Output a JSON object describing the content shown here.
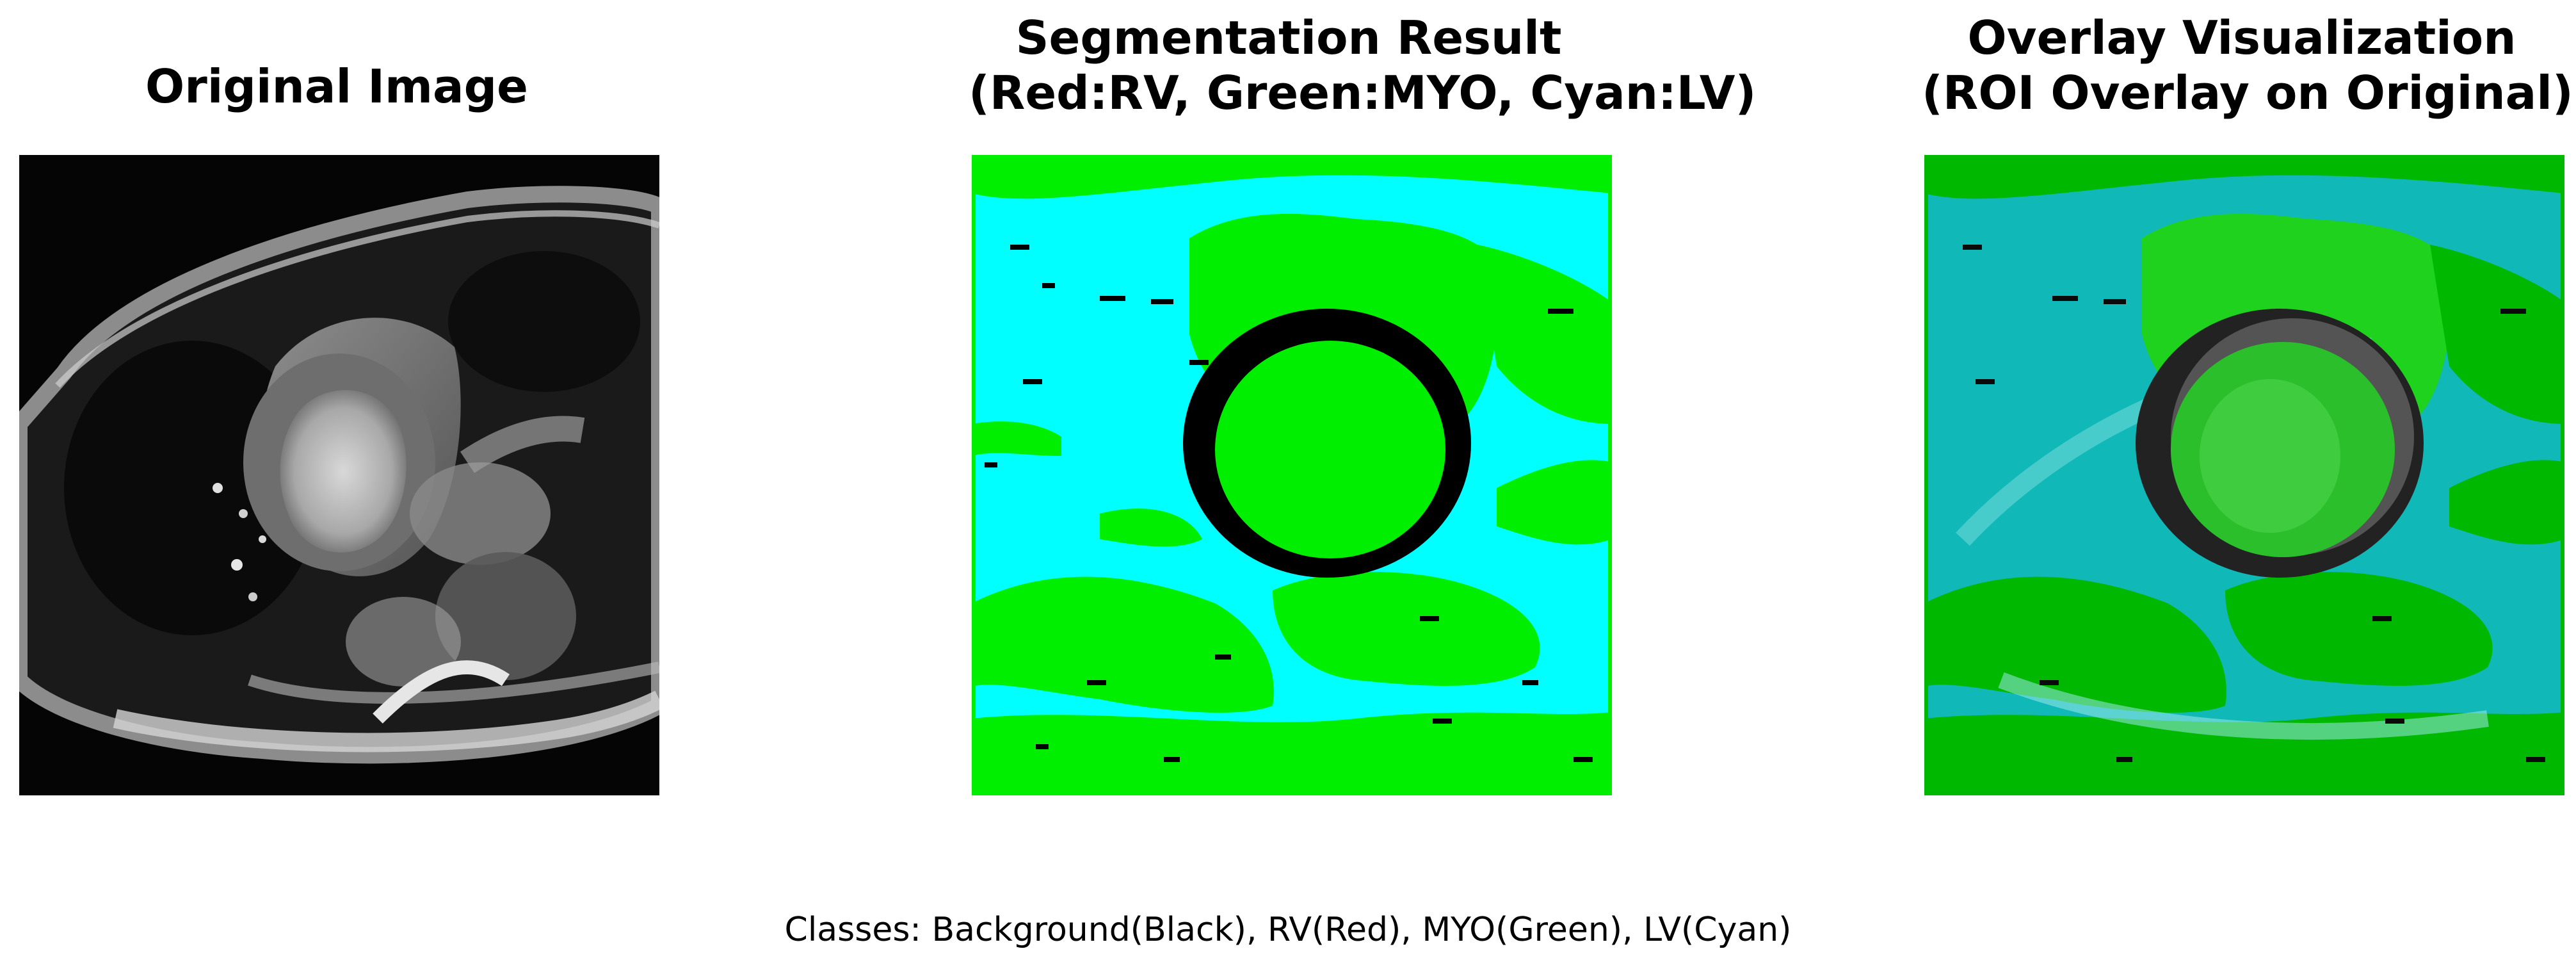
{
  "figure": {
    "panels": [
      {
        "title_lines": [
          "Original Image"
        ],
        "content": "cardiac MRI grayscale short-axis slice"
      },
      {
        "title_lines": [
          "Segmentation Result",
          "(Red:RV, Green:MYO, Cyan:LV)"
        ],
        "content": "label map: cyan background region, green regions, black ring"
      },
      {
        "title_lines": [
          "Overlay Visualization",
          "(ROI Overlay on Original)"
        ],
        "content": "segmentation blended over the original image"
      }
    ],
    "caption": "Classes: Background(Black), RV(Red), MYO(Green), LV(Cyan)"
  },
  "colors": {
    "background": "#000000",
    "rv": "#ff0000",
    "myo": "#00ee00",
    "lv": "#00ffff",
    "overlay_green": "#00b800",
    "overlay_cyan": "#10b8b8"
  }
}
